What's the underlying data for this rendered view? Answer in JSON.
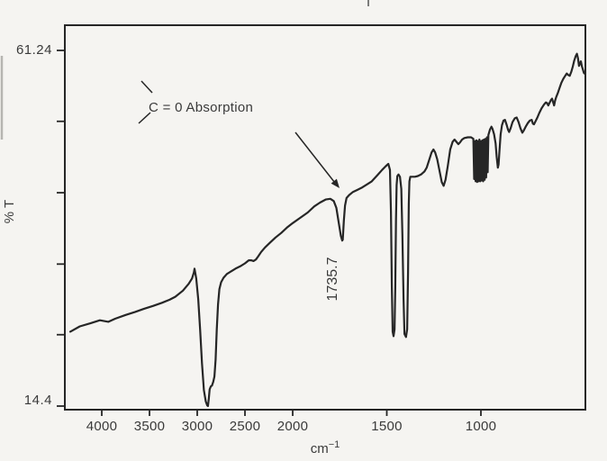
{
  "page": {
    "background": "#f5f4f1",
    "ink": "#262626",
    "text_color": "#3a3a3a"
  },
  "chart_data": {
    "type": "line",
    "title": "",
    "description": "Scanned infrared (IR) transmittance spectrum with carbonyl absorption annotated",
    "x_axis": {
      "title_base": "cm",
      "title_exponent": "−1",
      "ticks": [
        4000,
        3500,
        3000,
        2500,
        2000,
        1500,
        1000
      ],
      "max": 4400,
      "min": 450,
      "scale_note": "dual linear scale: distance per 500 cm-1 doubles below 2000 cm-1",
      "grid": false
    },
    "y_axis": {
      "title": "% T",
      "labeled_ticks": [
        {
          "value": 61.24,
          "label": "61.24"
        },
        {
          "value": 14.4,
          "label": "14.4"
        }
      ],
      "unlabeled_tick_values": [
        51.9,
        42.5,
        33.1,
        23.8
      ],
      "min": 14.4,
      "max": 61.24,
      "grid": false
    },
    "annotations": [
      {
        "id": "carbonyl-label",
        "text": "C = 0 Absorption"
      },
      {
        "id": "peak-wavenumber-label",
        "text": "1735.7",
        "rotation_deg": -90
      },
      {
        "id": "annotation-arrow",
        "text": "",
        "note": "arrow from label toward dip at 1735.7 cm-1"
      }
    ],
    "legend": null,
    "series": [
      {
        "name": "transmittance",
        "x_unit": "cm-1",
        "y_unit": "%T",
        "points": [
          [
            4330,
            24.2
          ],
          [
            4230,
            24.9
          ],
          [
            4120,
            25.3
          ],
          [
            4020,
            25.7
          ],
          [
            3930,
            25.5
          ],
          [
            3860,
            25.9
          ],
          [
            3750,
            26.4
          ],
          [
            3650,
            26.8
          ],
          [
            3560,
            27.2
          ],
          [
            3460,
            27.6
          ],
          [
            3370,
            28.0
          ],
          [
            3290,
            28.4
          ],
          [
            3230,
            28.8
          ],
          [
            3150,
            29.6
          ],
          [
            3090,
            30.5
          ],
          [
            3055,
            31.2
          ],
          [
            3035,
            32.0
          ],
          [
            3028,
            32.5
          ],
          [
            3010,
            31.2
          ],
          [
            2990,
            28.5
          ],
          [
            2970,
            24.5
          ],
          [
            2950,
            20.0
          ],
          [
            2930,
            16.5
          ],
          [
            2910,
            15.0
          ],
          [
            2895,
            14.5
          ],
          [
            2888,
            14.4
          ],
          [
            2880,
            15.2
          ],
          [
            2870,
            16.6
          ],
          [
            2858,
            17.0
          ],
          [
            2845,
            17.1
          ],
          [
            2832,
            17.6
          ],
          [
            2820,
            18.3
          ],
          [
            2808,
            20.5
          ],
          [
            2795,
            24.5
          ],
          [
            2782,
            27.8
          ],
          [
            2768,
            29.8
          ],
          [
            2750,
            30.7
          ],
          [
            2725,
            31.3
          ],
          [
            2690,
            31.8
          ],
          [
            2650,
            32.1
          ],
          [
            2600,
            32.5
          ],
          [
            2550,
            32.8
          ],
          [
            2500,
            33.2
          ],
          [
            2460,
            33.6
          ],
          [
            2435,
            33.6
          ],
          [
            2410,
            33.5
          ],
          [
            2385,
            33.7
          ],
          [
            2362,
            34.1
          ],
          [
            2330,
            34.7
          ],
          [
            2290,
            35.3
          ],
          [
            2240,
            35.9
          ],
          [
            2180,
            36.6
          ],
          [
            2120,
            37.2
          ],
          [
            2060,
            37.9
          ],
          [
            2000,
            38.5
          ],
          [
            1960,
            39.2
          ],
          [
            1920,
            39.9
          ],
          [
            1885,
            40.7
          ],
          [
            1855,
            41.2
          ],
          [
            1825,
            41.6
          ],
          [
            1800,
            41.7
          ],
          [
            1782,
            41.4
          ],
          [
            1768,
            40.5
          ],
          [
            1755,
            38.5
          ],
          [
            1744,
            36.8
          ],
          [
            1737,
            36.2
          ],
          [
            1734,
            36.3
          ],
          [
            1728,
            38.8
          ],
          [
            1722,
            40.8
          ],
          [
            1714,
            41.8
          ],
          [
            1700,
            42.2
          ],
          [
            1680,
            42.6
          ],
          [
            1655,
            42.9
          ],
          [
            1630,
            43.2
          ],
          [
            1605,
            43.6
          ],
          [
            1580,
            44.0
          ],
          [
            1550,
            44.8
          ],
          [
            1525,
            45.5
          ],
          [
            1505,
            46.0
          ],
          [
            1492,
            46.3
          ],
          [
            1483,
            45.5
          ],
          [
            1478,
            40.0
          ],
          [
            1473,
            30.0
          ],
          [
            1469,
            24.2
          ],
          [
            1464,
            23.6
          ],
          [
            1459,
            24.5
          ],
          [
            1455,
            30.0
          ],
          [
            1451,
            39.0
          ],
          [
            1448,
            43.5
          ],
          [
            1444,
            44.7
          ],
          [
            1438,
            44.9
          ],
          [
            1430,
            44.6
          ],
          [
            1423,
            43.0
          ],
          [
            1417,
            37.0
          ],
          [
            1411,
            28.5
          ],
          [
            1406,
            23.9
          ],
          [
            1398,
            23.5
          ],
          [
            1392,
            24.5
          ],
          [
            1387,
            32.0
          ],
          [
            1383,
            41.0
          ],
          [
            1380,
            44.0
          ],
          [
            1375,
            44.6
          ],
          [
            1365,
            44.6
          ],
          [
            1350,
            44.6
          ],
          [
            1335,
            44.7
          ],
          [
            1318,
            44.9
          ],
          [
            1300,
            45.3
          ],
          [
            1288,
            45.8
          ],
          [
            1275,
            46.8
          ],
          [
            1262,
            47.8
          ],
          [
            1252,
            48.2
          ],
          [
            1243,
            47.8
          ],
          [
            1232,
            46.9
          ],
          [
            1220,
            45.4
          ],
          [
            1208,
            43.9
          ],
          [
            1198,
            43.4
          ],
          [
            1188,
            44.2
          ],
          [
            1176,
            46.0
          ],
          [
            1163,
            48.2
          ],
          [
            1150,
            49.2
          ],
          [
            1140,
            49.5
          ],
          [
            1130,
            49.2
          ],
          [
            1120,
            48.9
          ],
          [
            1112,
            49.1
          ],
          [
            1100,
            49.5
          ],
          [
            1088,
            49.7
          ],
          [
            1070,
            49.8
          ],
          [
            1052,
            49.8
          ],
          [
            1040,
            49.6
          ],
          [
            1036,
            44.3
          ],
          [
            1032,
            49.3
          ],
          [
            1028,
            44.0
          ],
          [
            1024,
            49.4
          ],
          [
            1020,
            43.9
          ],
          [
            1016,
            49.3
          ],
          [
            1012,
            44.0
          ],
          [
            1008,
            49.5
          ],
          [
            1004,
            44.0
          ],
          [
            1000,
            49.3
          ],
          [
            996,
            44.1
          ],
          [
            992,
            49.4
          ],
          [
            988,
            44.0
          ],
          [
            984,
            49.5
          ],
          [
            980,
            44.2
          ],
          [
            976,
            49.6
          ],
          [
            972,
            44.5
          ],
          [
            968,
            49.8
          ],
          [
            964,
            45.2
          ],
          [
            960,
            50.1
          ],
          [
            952,
            50.8
          ],
          [
            944,
            51.2
          ],
          [
            938,
            50.9
          ],
          [
            930,
            50.2
          ],
          [
            922,
            49.0
          ],
          [
            916,
            47.2
          ],
          [
            910,
            45.8
          ],
          [
            906,
            46.2
          ],
          [
            901,
            48.2
          ],
          [
            895,
            50.2
          ],
          [
            888,
            51.4
          ],
          [
            880,
            52.0
          ],
          [
            872,
            52.1
          ],
          [
            864,
            51.5
          ],
          [
            856,
            50.8
          ],
          [
            850,
            50.5
          ],
          [
            842,
            51.0
          ],
          [
            832,
            51.8
          ],
          [
            820,
            52.3
          ],
          [
            810,
            52.4
          ],
          [
            800,
            51.8
          ],
          [
            790,
            51.0
          ],
          [
            780,
            50.4
          ],
          [
            772,
            50.7
          ],
          [
            762,
            51.2
          ],
          [
            750,
            51.7
          ],
          [
            740,
            52.0
          ],
          [
            730,
            52.1
          ],
          [
            724,
            51.6
          ],
          [
            718,
            51.5
          ],
          [
            710,
            51.9
          ],
          [
            700,
            52.4
          ],
          [
            690,
            53.0
          ],
          [
            678,
            53.6
          ],
          [
            665,
            54.1
          ],
          [
            655,
            54.4
          ],
          [
            648,
            54.3
          ],
          [
            642,
            54.0
          ],
          [
            636,
            54.3
          ],
          [
            628,
            54.7
          ],
          [
            622,
            54.9
          ],
          [
            616,
            54.4
          ],
          [
            611,
            54.0
          ],
          [
            606,
            54.6
          ],
          [
            600,
            55.1
          ],
          [
            592,
            55.6
          ],
          [
            582,
            56.3
          ],
          [
            572,
            57.0
          ],
          [
            562,
            57.5
          ],
          [
            552,
            57.9
          ],
          [
            544,
            58.2
          ],
          [
            536,
            58.0
          ],
          [
            528,
            57.9
          ],
          [
            520,
            58.4
          ],
          [
            512,
            59.1
          ],
          [
            504,
            59.9
          ],
          [
            496,
            60.5
          ],
          [
            490,
            60.8
          ],
          [
            484,
            60.2
          ],
          [
            479,
            59.2
          ],
          [
            474,
            59.5
          ],
          [
            469,
            59.8
          ],
          [
            464,
            59.2
          ],
          [
            458,
            58.7
          ],
          [
            453,
            58.3
          ],
          [
            450,
            58.2
          ]
        ]
      }
    ]
  }
}
